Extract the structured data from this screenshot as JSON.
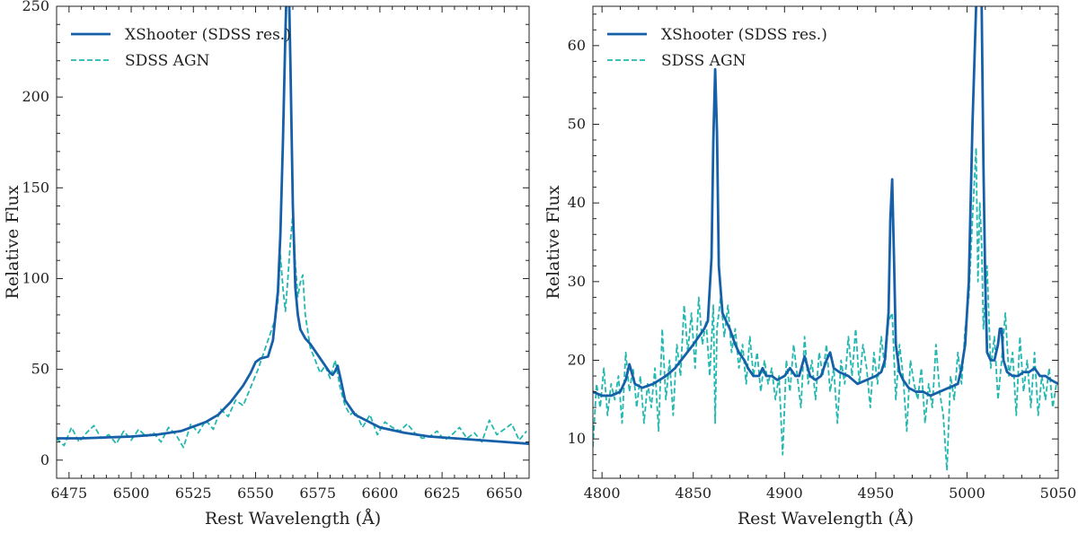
{
  "chart_data": [
    {
      "type": "line",
      "title": "",
      "xlabel": "Rest Wavelength (Å)",
      "ylabel": "Relative Flux",
      "xlim": [
        6470,
        6660
      ],
      "ylim": [
        -10,
        250
      ],
      "xticks": [
        6475,
        6500,
        6525,
        6550,
        6575,
        6600,
        6625,
        6650
      ],
      "yticks": [
        0,
        50,
        100,
        150,
        200,
        250
      ],
      "legend_position": "top-left",
      "series": [
        {
          "name": "XShooter (SDSS res.)",
          "style": "solid",
          "color": "#1560a8",
          "x": [
            6470,
            6480,
            6490,
            6500,
            6510,
            6520,
            6530,
            6535,
            6540,
            6545,
            6548,
            6550,
            6552,
            6555,
            6557,
            6559,
            6560,
            6561,
            6562,
            6562.5,
            6563,
            6563.5,
            6564,
            6565,
            6566,
            6567,
            6568,
            6570,
            6572,
            6575,
            6578,
            6580,
            6581,
            6582,
            6583,
            6584,
            6586,
            6590,
            6600,
            6610,
            6620,
            6630,
            6640,
            6650,
            6660
          ],
          "y": [
            12,
            12,
            12.5,
            13,
            14,
            16,
            21,
            25,
            32,
            41,
            48,
            54,
            56,
            57,
            66,
            93,
            125,
            175,
            235,
            260,
            265,
            255,
            220,
            140,
            95,
            80,
            72,
            67,
            64,
            58,
            52,
            48,
            47,
            49,
            52,
            46,
            33,
            25,
            18,
            15,
            13,
            12,
            11,
            10,
            9
          ]
        },
        {
          "name": "SDSS AGN",
          "style": "dashed",
          "color": "#22b8b0",
          "x": [
            6470,
            6473,
            6476,
            6479,
            6482,
            6485,
            6488,
            6491,
            6494,
            6497,
            6500,
            6503,
            6506,
            6509,
            6512,
            6515,
            6518,
            6521,
            6524,
            6527,
            6530,
            6533,
            6536,
            6539,
            6542,
            6545,
            6548,
            6551,
            6554,
            6556,
            6558,
            6559,
            6560,
            6561,
            6562,
            6563,
            6564,
            6565,
            6566,
            6567,
            6568,
            6569,
            6570,
            6572,
            6574,
            6576,
            6578,
            6580,
            6582,
            6584,
            6586,
            6588,
            6590,
            6593,
            6596,
            6599,
            6602,
            6605,
            6608,
            6611,
            6614,
            6617,
            6620,
            6623,
            6626,
            6629,
            6632,
            6635,
            6638,
            6641,
            6644,
            6647,
            6650,
            6653,
            6656,
            6659
          ],
          "y": [
            12,
            8,
            18,
            10,
            15,
            19,
            12,
            14,
            9,
            16,
            11,
            17,
            13,
            15,
            10,
            18,
            14,
            7,
            20,
            15,
            22,
            17,
            28,
            24,
            33,
            30,
            40,
            50,
            62,
            70,
            78,
            88,
            113,
            95,
            82,
            100,
            120,
            136,
            108,
            90,
            98,
            102,
            80,
            62,
            55,
            48,
            52,
            45,
            55,
            40,
            30,
            25,
            27,
            18,
            25,
            14,
            21,
            18,
            16,
            20,
            15,
            12,
            13,
            16,
            11,
            14,
            18,
            12,
            15,
            10,
            22,
            14,
            17,
            20,
            11,
            16
          ]
        }
      ]
    },
    {
      "type": "line",
      "title": "",
      "xlabel": "Rest Wavelength (Å)",
      "ylabel": "Relative Flux",
      "xlim": [
        4795,
        5050
      ],
      "ylim": [
        5,
        65
      ],
      "xticks": [
        4800,
        4850,
        4900,
        4950,
        5000,
        5050
      ],
      "yticks": [
        10,
        20,
        30,
        40,
        50,
        60
      ],
      "legend_position": "top-left",
      "series": [
        {
          "name": "XShooter (SDSS res.)",
          "style": "solid",
          "color": "#1560a8",
          "x": [
            4795,
            4800,
            4805,
            4810,
            4813,
            4815,
            4818,
            4822,
            4828,
            4835,
            4840,
            4845,
            4850,
            4853,
            4856,
            4858,
            4860,
            4861,
            4862,
            4863,
            4864,
            4866,
            4868,
            4870,
            4873,
            4875,
            4878,
            4880,
            4883,
            4886,
            4888,
            4890,
            4893,
            4896,
            4900,
            4903,
            4906,
            4908,
            4911,
            4914,
            4917,
            4920,
            4923,
            4925,
            4927,
            4930,
            4935,
            4940,
            4945,
            4950,
            4953,
            4955,
            4957,
            4958,
            4959,
            4960,
            4961,
            4963,
            4965,
            4968,
            4972,
            4976,
            4980,
            4985,
            4990,
            4995,
            4997,
            4999,
            5001,
            5003,
            5005,
            5006,
            5007,
            5008,
            5009,
            5010,
            5011,
            5013,
            5015,
            5017,
            5018,
            5019,
            5020,
            5022,
            5025,
            5028,
            5031,
            5034,
            5037,
            5040,
            5043,
            5046,
            5050
          ],
          "y": [
            16,
            15.5,
            15.5,
            16,
            17.5,
            19.5,
            17,
            16.5,
            17,
            18,
            19,
            20.5,
            22,
            23,
            24,
            25,
            33,
            48,
            57,
            49,
            32,
            26,
            25,
            24,
            22,
            21,
            20,
            19,
            18,
            18,
            19,
            18,
            18,
            17.5,
            18,
            19,
            18,
            18,
            20.5,
            18,
            17.5,
            18,
            20,
            21,
            19,
            18.5,
            18,
            17,
            17.5,
            18,
            18.5,
            20,
            26,
            38,
            43,
            33,
            22,
            18.5,
            17.5,
            16.5,
            16,
            16,
            15.5,
            16,
            16.5,
            17,
            19,
            22,
            30,
            50,
            65,
            66,
            66,
            66,
            45,
            30,
            21,
            20,
            20,
            22,
            24,
            24,
            20,
            18.5,
            18,
            18,
            18.5,
            18.5,
            19,
            18,
            18,
            17.5,
            17
          ]
        },
        {
          "name": "SDSS AGN",
          "style": "dashed",
          "color": "#22b8b0",
          "x": [
            4795,
            4797,
            4799,
            4801,
            4803,
            4805,
            4807,
            4809,
            4811,
            4813,
            4815,
            4817,
            4819,
            4821,
            4823,
            4825,
            4827,
            4829,
            4831,
            4833,
            4835,
            4837,
            4839,
            4841,
            4843,
            4845,
            4847,
            4849,
            4851,
            4853,
            4855,
            4857,
            4859,
            4861,
            4862,
            4863,
            4865,
            4867,
            4869,
            4871,
            4873,
            4875,
            4877,
            4879,
            4881,
            4883,
            4885,
            4887,
            4889,
            4891,
            4893,
            4895,
            4897,
            4899,
            4901,
            4903,
            4905,
            4907,
            4909,
            4911,
            4913,
            4915,
            4917,
            4919,
            4921,
            4923,
            4925,
            4927,
            4929,
            4931,
            4933,
            4935,
            4937,
            4939,
            4941,
            4943,
            4945,
            4947,
            4949,
            4951,
            4953,
            4955,
            4957,
            4959,
            4961,
            4963,
            4965,
            4967,
            4969,
            4971,
            4973,
            4975,
            4977,
            4979,
            4981,
            4983,
            4985,
            4987,
            4989,
            4991,
            4993,
            4995,
            4997,
            4999,
            5001,
            5003,
            5005,
            5006,
            5007,
            5008,
            5009,
            5011,
            5013,
            5015,
            5017,
            5019,
            5021,
            5023,
            5025,
            5027,
            5029,
            5031,
            5033,
            5035,
            5037,
            5039,
            5041,
            5043,
            5045,
            5047,
            5049
          ],
          "y": [
            9,
            17,
            14,
            19,
            13,
            17,
            15,
            18,
            12,
            21,
            16,
            19,
            14,
            18,
            12,
            17,
            14,
            19,
            11,
            24,
            15,
            20,
            13,
            22,
            18,
            27,
            21,
            26,
            19,
            28,
            22,
            25,
            18,
            27,
            12,
            24,
            28,
            23,
            27,
            21,
            24,
            19,
            22,
            17,
            23,
            18,
            21,
            16,
            20,
            17,
            19,
            15,
            18,
            8,
            20,
            16,
            22,
            18,
            14,
            23,
            17,
            20,
            15,
            21,
            18,
            22,
            16,
            19,
            12,
            20,
            17,
            23,
            18,
            24,
            17,
            22,
            19,
            14,
            21,
            17,
            23,
            19,
            25,
            26,
            15,
            22,
            18,
            11,
            20,
            17,
            15,
            19,
            12,
            17,
            14,
            22,
            16,
            13,
            6,
            18,
            15,
            21,
            17,
            24,
            28,
            38,
            47,
            30,
            40,
            35,
            24,
            32,
            19,
            23,
            15,
            20,
            26,
            18,
            21,
            13,
            23,
            16,
            20,
            14,
            21,
            13,
            18,
            15,
            19,
            14,
            17
          ]
        }
      ]
    }
  ]
}
